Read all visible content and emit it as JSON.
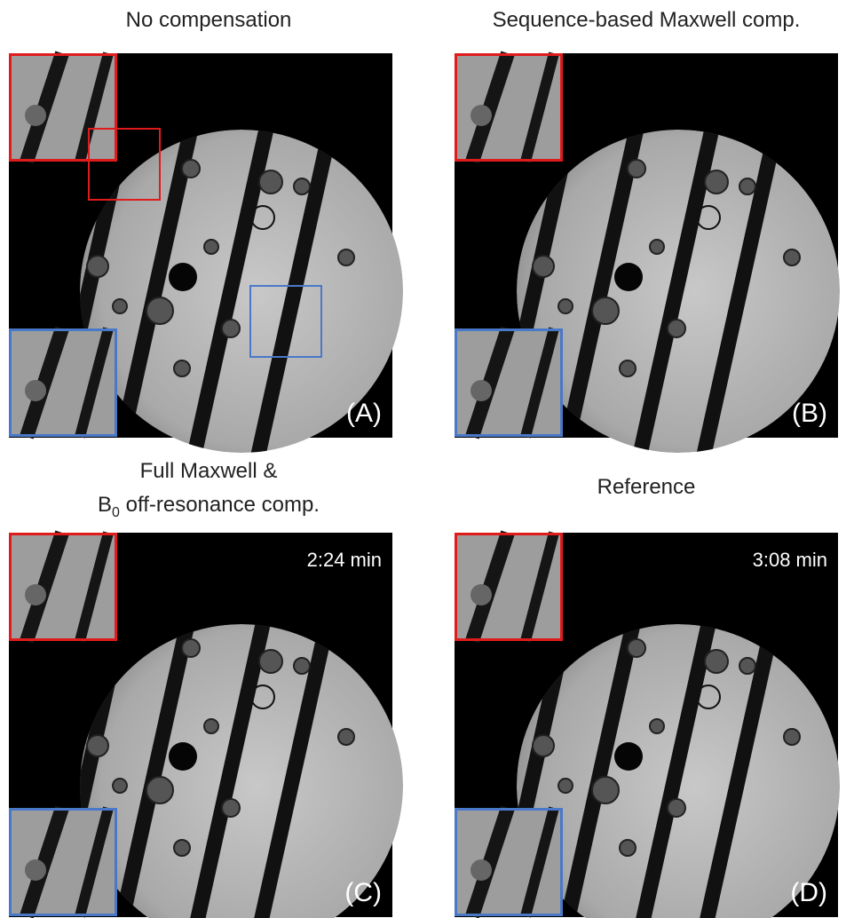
{
  "panels": [
    {
      "title": "No compensation",
      "label": "(A)"
    },
    {
      "title": "Sequence-based Maxwell comp.",
      "label": "(B)"
    },
    {
      "title_line1": "Full Maxwell &",
      "title_line2": {
        "base": "B",
        "sub": "0",
        "rest": " off-resonance comp."
      },
      "label": "(C)",
      "time": "2:24 min"
    },
    {
      "title": "Reference",
      "label": "(D)",
      "time": "3:08 min"
    }
  ]
}
